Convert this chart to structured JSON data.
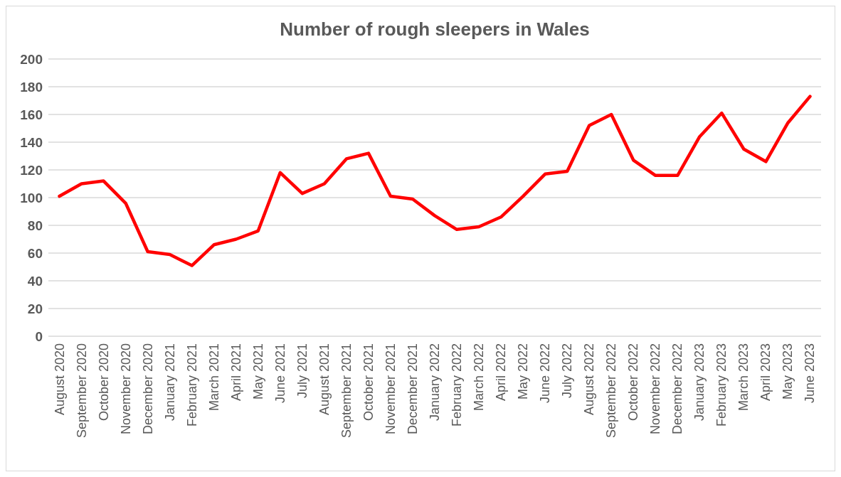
{
  "chart_data": {
    "type": "line",
    "title": "Number of rough sleepers in Wales",
    "categories": [
      "August 2020",
      "September 2020",
      "October 2020",
      "November 2020",
      "December 2020",
      "January 2021",
      "February 2021",
      "March 2021",
      "April 2021",
      "May 2021",
      "June 2021",
      "July 2021",
      "August 2021",
      "September 2021",
      "October 2021",
      "November 2021",
      "December 2021",
      "January 2022",
      "February 2022",
      "March 2022",
      "April 2022",
      "May 2022",
      "June 2022",
      "July 2022",
      "August 2022",
      "September 2022",
      "October 2022",
      "November 2022",
      "December 2022",
      "January 2023",
      "February 2023",
      "March 2023",
      "April 2023",
      "May 2023",
      "June 2023"
    ],
    "series": [
      {
        "color": "#ff0000",
        "values": [
          101,
          110,
          112,
          96,
          61,
          59,
          51,
          66,
          70,
          76,
          118,
          103,
          110,
          128,
          132,
          101,
          99,
          87,
          77,
          79,
          86,
          101,
          117,
          119,
          152,
          160,
          127,
          116,
          116,
          144,
          161,
          135,
          126,
          154,
          173
        ]
      }
    ],
    "ylim": [
      0,
      200
    ],
    "yticks": [
      0,
      20,
      40,
      60,
      80,
      100,
      120,
      140,
      160,
      180,
      200
    ],
    "grid": "y",
    "marker": "none",
    "line_style": "solid"
  }
}
